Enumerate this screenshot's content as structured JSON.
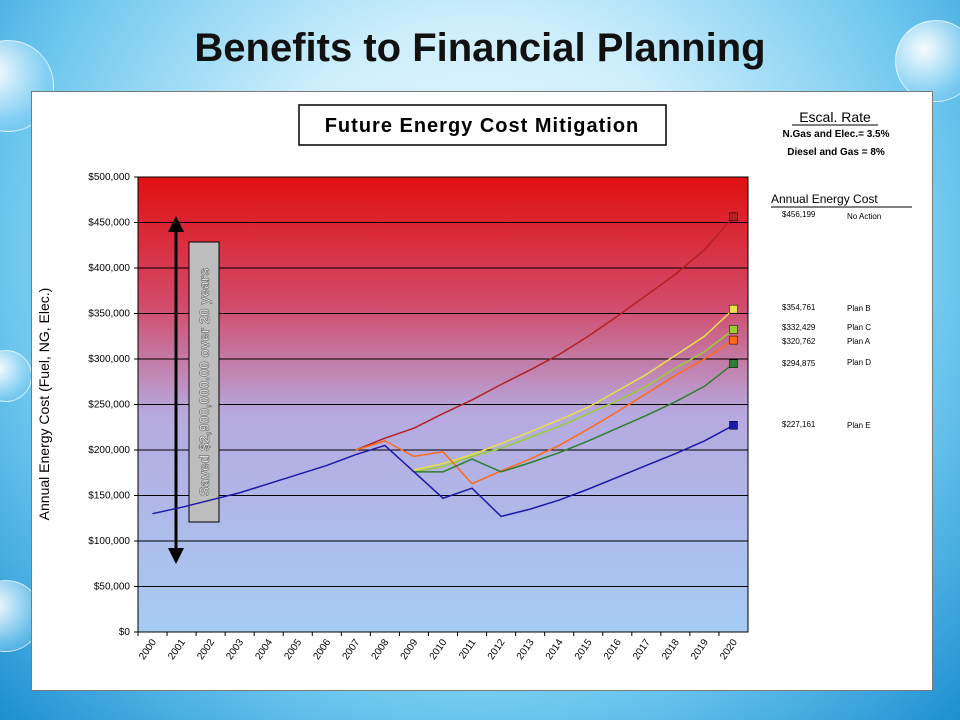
{
  "slide": {
    "title": "Benefits to Financial Planning"
  },
  "chart_data": {
    "type": "line",
    "title": "Future Energy Cost Mitigation",
    "ylabel": "Annual Energy Cost (Fuel, NG, Elec.)",
    "xlabel": "",
    "ylim": [
      0,
      500000
    ],
    "y_ticks": [
      "$0",
      "$50,000",
      "$100,000",
      "$150,000",
      "$200,000",
      "$250,000",
      "$300,000",
      "$350,000",
      "$400,000",
      "$450,000",
      "$500,000"
    ],
    "x": [
      "2000",
      "2001",
      "2002",
      "2003",
      "2004",
      "2005",
      "2006",
      "2007",
      "2008",
      "2009",
      "2010",
      "2011",
      "2012",
      "2013",
      "2014",
      "2015",
      "2016",
      "2017",
      "2018",
      "2019",
      "2020"
    ],
    "grid": true,
    "escalation": {
      "heading": "Escal. Rate",
      "line1": "N.Gas and Elec.= 3.5%",
      "line2": "Diesel and Gas = 8%"
    },
    "savings_label": "Saved $2,900,000.00 over 20 years",
    "series": [
      {
        "name": "No Action",
        "color": "#b22222",
        "end_label": "$456,199",
        "points": [
          [
            7.5,
            200000
          ],
          [
            8.5,
            213000
          ],
          [
            9.5,
            224000
          ],
          [
            10.5,
            240000
          ],
          [
            11.5,
            255000
          ],
          [
            12.5,
            272000
          ],
          [
            13.5,
            288000
          ],
          [
            14.5,
            305000
          ],
          [
            15.5,
            325000
          ],
          [
            16.5,
            347000
          ],
          [
            17.5,
            370000
          ],
          [
            18.5,
            393000
          ],
          [
            19.5,
            420000
          ],
          [
            20.5,
            456199
          ]
        ]
      },
      {
        "name": "Plan B",
        "color": "#e8e048",
        "end_label": "$354,761",
        "points": [
          [
            9.5,
            178000
          ],
          [
            10.5,
            185000
          ],
          [
            11.5,
            195000
          ],
          [
            12.5,
            207000
          ],
          [
            13.5,
            220000
          ],
          [
            14.5,
            233000
          ],
          [
            15.5,
            247000
          ],
          [
            16.5,
            265000
          ],
          [
            17.5,
            283000
          ],
          [
            18.5,
            304000
          ],
          [
            19.5,
            325000
          ],
          [
            20.5,
            354761
          ]
        ]
      },
      {
        "name": "Plan C",
        "color": "#9acd32",
        "end_label": "$332,429",
        "points": [
          [
            9.5,
            176000
          ],
          [
            10.5,
            182000
          ],
          [
            11.5,
            193000
          ],
          [
            12.5,
            202000
          ],
          [
            13.5,
            214000
          ],
          [
            14.5,
            226000
          ],
          [
            15.5,
            240000
          ],
          [
            16.5,
            254000
          ],
          [
            17.5,
            270000
          ],
          [
            18.5,
            290000
          ],
          [
            19.5,
            308000
          ],
          [
            20.5,
            332429
          ]
        ]
      },
      {
        "name": "Plan A",
        "color": "#ff6a1a",
        "end_label": "$320,762",
        "points": [
          [
            7.5,
            200000
          ],
          [
            8.5,
            210000
          ],
          [
            9.5,
            193000
          ],
          [
            10.5,
            198000
          ],
          [
            11.5,
            163000
          ],
          [
            12.5,
            177000
          ],
          [
            13.5,
            190000
          ],
          [
            14.5,
            205000
          ],
          [
            15.5,
            223000
          ],
          [
            16.5,
            242000
          ],
          [
            17.5,
            262000
          ],
          [
            18.5,
            282000
          ],
          [
            19.5,
            300000
          ],
          [
            20.5,
            320762
          ]
        ]
      },
      {
        "name": "Plan D",
        "color": "#2e7d32",
        "end_label": "$294,875",
        "points": [
          [
            9.5,
            176000
          ],
          [
            10.5,
            176000
          ],
          [
            11.5,
            190000
          ],
          [
            12.5,
            176000
          ],
          [
            13.5,
            186000
          ],
          [
            14.5,
            197000
          ],
          [
            15.5,
            210000
          ],
          [
            16.5,
            224000
          ],
          [
            17.5,
            238000
          ],
          [
            18.5,
            253000
          ],
          [
            19.5,
            270000
          ],
          [
            20.5,
            294875
          ]
        ]
      },
      {
        "name": "Plan E",
        "color": "#1a1aa8",
        "end_label": "$227,161",
        "points": [
          [
            0.5,
            130000
          ],
          [
            1.5,
            137000
          ],
          [
            2.5,
            145000
          ],
          [
            3.5,
            153000
          ],
          [
            4.5,
            163000
          ],
          [
            5.5,
            173000
          ],
          [
            6.5,
            183000
          ],
          [
            7.5,
            195000
          ],
          [
            8.5,
            205000
          ],
          [
            9.5,
            176000
          ],
          [
            10.5,
            147000
          ],
          [
            11.5,
            158000
          ],
          [
            12.5,
            127000
          ],
          [
            13.5,
            135000
          ],
          [
            14.5,
            145000
          ],
          [
            15.5,
            157000
          ],
          [
            16.5,
            170000
          ],
          [
            17.5,
            183000
          ],
          [
            18.5,
            196000
          ],
          [
            19.5,
            210000
          ],
          [
            20.5,
            227161
          ]
        ]
      }
    ],
    "annual_cost_header": "Annual Energy Cost"
  }
}
